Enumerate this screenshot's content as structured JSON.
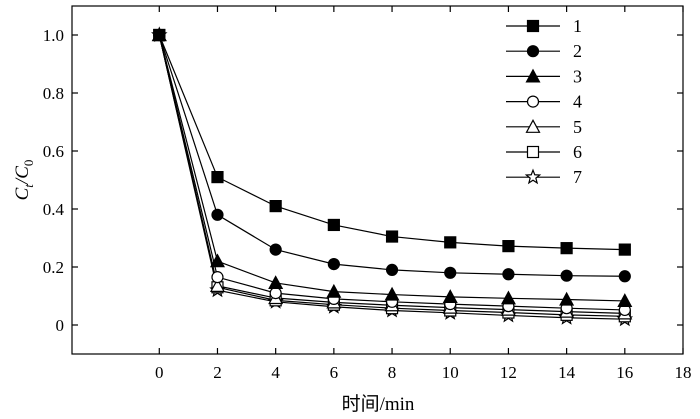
{
  "chart_data": {
    "type": "line",
    "xlabel": "时间/min",
    "ylabel": "C",
    "ylabel_sub": "t",
    "ylabel_sep": "/C",
    "ylabel_sub2": "0",
    "xlim": [
      -3,
      18
    ],
    "ylim": [
      -0.1,
      1.1
    ],
    "xticks": [
      0,
      2,
      4,
      6,
      8,
      10,
      12,
      14,
      16,
      18
    ],
    "xtick_labels": [
      "0",
      "2",
      "4",
      "6",
      "8",
      "10",
      "12",
      "14",
      "16",
      "18"
    ],
    "yticks": [
      0,
      0.2,
      0.4,
      0.6,
      0.8,
      1.0
    ],
    "ytick_labels": [
      "0",
      "0.2",
      "0.4",
      "0.6",
      "0.8",
      "1.0"
    ],
    "grid": false,
    "legend_position": "top-right",
    "x": [
      0,
      2,
      4,
      6,
      8,
      10,
      12,
      14,
      16
    ],
    "series": [
      {
        "name": "1",
        "marker": "filled-square",
        "values": [
          1.0,
          0.51,
          0.41,
          0.345,
          0.305,
          0.285,
          0.272,
          0.265,
          0.26
        ]
      },
      {
        "name": "2",
        "marker": "filled-circle",
        "values": [
          1.0,
          0.38,
          0.26,
          0.21,
          0.19,
          0.18,
          0.175,
          0.17,
          0.168
        ]
      },
      {
        "name": "3",
        "marker": "filled-triangle",
        "values": [
          1.0,
          0.22,
          0.145,
          0.115,
          0.105,
          0.097,
          0.092,
          0.088,
          0.083
        ]
      },
      {
        "name": "4",
        "marker": "open-circle",
        "values": [
          1.0,
          0.165,
          0.11,
          0.09,
          0.08,
          0.072,
          0.065,
          0.058,
          0.052
        ]
      },
      {
        "name": "5",
        "marker": "open-triangle",
        "values": [
          1.0,
          0.135,
          0.093,
          0.078,
          0.068,
          0.06,
          0.053,
          0.046,
          0.04
        ]
      },
      {
        "name": "6",
        "marker": "open-square",
        "values": [
          1.0,
          0.13,
          0.085,
          0.07,
          0.058,
          0.05,
          0.043,
          0.035,
          0.03
        ]
      },
      {
        "name": "7",
        "marker": "open-star",
        "values": [
          1.0,
          0.12,
          0.08,
          0.063,
          0.05,
          0.042,
          0.033,
          0.025,
          0.02
        ]
      }
    ]
  }
}
